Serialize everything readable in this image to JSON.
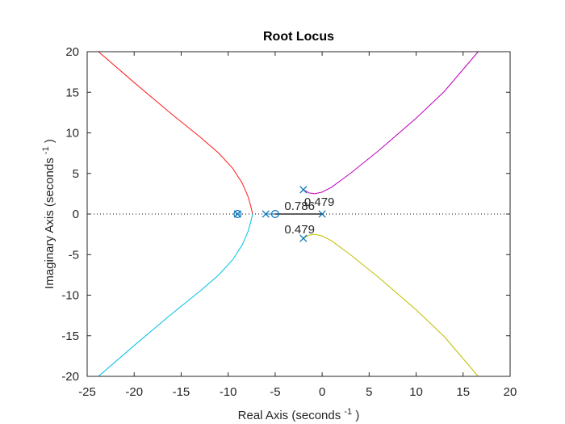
{
  "chart_data": {
    "type": "line",
    "title": "Root Locus",
    "xlabel": "Real Axis (seconds",
    "xlabel_superscript": "-1",
    "xlabel_suffix": ")",
    "ylabel": "Imaginary Axis (seconds",
    "ylabel_superscript": "-1",
    "ylabel_suffix": ")",
    "xlim": [
      -25,
      20
    ],
    "ylim": [
      -20,
      20
    ],
    "xticks": [
      -25,
      -20,
      -15,
      -10,
      -5,
      0,
      5,
      10,
      15,
      20
    ],
    "yticks": [
      -20,
      -15,
      -10,
      -5,
      0,
      5,
      10,
      15,
      20
    ],
    "grid": false,
    "box": true,
    "zero_line": {
      "y": 0,
      "style": "dotted",
      "color": "#000000"
    },
    "poles": [
      {
        "x": -9,
        "y": 0
      },
      {
        "x": -6,
        "y": 0
      },
      {
        "x": -2,
        "y": 3
      },
      {
        "x": -2,
        "y": -3
      },
      {
        "x": 0,
        "y": 0
      }
    ],
    "zeros": [
      {
        "x": -9,
        "y": 0
      },
      {
        "x": -5,
        "y": 0
      }
    ],
    "annotations": [
      {
        "text": "0.479",
        "x": -0.3,
        "y": 1.4
      },
      {
        "text": "0.786",
        "x": -2.4,
        "y": 0.9
      },
      {
        "text": "0.479",
        "x": -2.4,
        "y": -2.0
      }
    ],
    "series": [
      {
        "color": "#ff1a1a",
        "width": 1,
        "x": [
          -23.8,
          -20,
          -16,
          -13,
          -11,
          -9.5,
          -8.5,
          -7.9,
          -7.6,
          -7.4
        ],
        "y": [
          20,
          16.2,
          12.3,
          9.5,
          7.5,
          5.6,
          3.8,
          2.2,
          1.0,
          0
        ]
      },
      {
        "color": "#00bfe6",
        "width": 1,
        "x": [
          -7.4,
          -7.6,
          -7.9,
          -8.5,
          -9.5,
          -11,
          -13,
          -16,
          -20,
          -23.8
        ],
        "y": [
          0,
          -1.0,
          -2.2,
          -3.8,
          -5.6,
          -7.5,
          -9.5,
          -12.3,
          -16.2,
          -20
        ]
      },
      {
        "color": "#bf00bf",
        "width": 1,
        "x": [
          -2,
          -1.4,
          -0.8,
          0,
          1,
          3,
          6,
          10,
          13,
          16.6
        ],
        "y": [
          3,
          2.6,
          2.5,
          2.7,
          3.3,
          5.0,
          7.8,
          11.8,
          15.1,
          20
        ]
      },
      {
        "color": "#bfbf00",
        "width": 1,
        "x": [
          -2,
          -1.4,
          -0.8,
          0,
          1,
          3,
          6,
          10,
          13,
          16.6
        ],
        "y": [
          -3,
          -2.6,
          -2.5,
          -2.7,
          -3.3,
          -5.0,
          -7.8,
          -11.8,
          -15.1,
          -20
        ]
      },
      {
        "color": "#009a00",
        "width": 1,
        "x": [
          -9,
          -9
        ],
        "y": [
          0,
          0
        ]
      },
      {
        "color": "#0072bd",
        "width": 1,
        "x": [
          -6,
          -5
        ],
        "y": [
          0,
          0
        ]
      },
      {
        "color": "#000000",
        "width": 1.2,
        "x": [
          -5,
          0
        ],
        "y": [
          0,
          0
        ]
      }
    ],
    "marker_color": "#0072bd"
  }
}
